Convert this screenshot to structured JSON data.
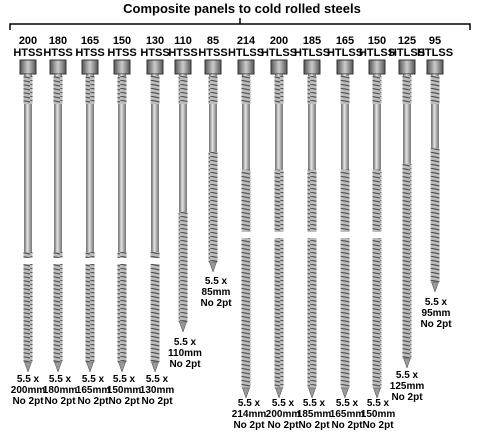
{
  "title": "Composite panels to cold rolled steels",
  "screws": [
    {
      "top": [
        "200",
        "HTSS"
      ],
      "bottom": [
        "5.5 x",
        "200mm",
        "No 2pt"
      ]
    },
    {
      "top": [
        "180",
        "HTSS"
      ],
      "bottom": [
        "5.5 x",
        "180mm",
        "No 2pt"
      ]
    },
    {
      "top": [
        "165",
        "HTSS"
      ],
      "bottom": [
        "5.5 x",
        "165mm",
        "No 2pt"
      ]
    },
    {
      "top": [
        "150",
        "HTSS"
      ],
      "bottom": [
        "5.5 x",
        "150mm",
        "No 2pt"
      ]
    },
    {
      "top": [
        "130",
        "HTSS"
      ],
      "bottom": [
        "5.5 x",
        "130mm",
        "No 2pt"
      ]
    },
    {
      "top": [
        "110",
        "HTSS"
      ],
      "bottom": [
        "5.5 x",
        "110mm",
        "No 2pt"
      ]
    },
    {
      "top": [
        "85",
        "HTSS"
      ],
      "bottom": [
        "5.5 x",
        "85mm",
        "No 2pt"
      ]
    },
    {
      "top": [
        "214",
        "HTLSS"
      ],
      "bottom": [
        "5.5 x",
        "214mm",
        "No 2pt"
      ]
    },
    {
      "top": [
        "200",
        "HTLSS"
      ],
      "bottom": [
        "5.5 x",
        "200mm",
        "No 2pt"
      ]
    },
    {
      "top": [
        "185",
        "HTLSS"
      ],
      "bottom": [
        "5.5 x",
        "185mm",
        "No 2pt"
      ]
    },
    {
      "top": [
        "165",
        "HTLSS"
      ],
      "bottom": [
        "5.5 x",
        "165mm",
        "No 2pt"
      ]
    },
    {
      "top": [
        "150",
        "HTLSS"
      ],
      "bottom": [
        "5.5 x",
        "150mm",
        "No 2pt"
      ]
    },
    {
      "top": [
        "125",
        "HTLSS"
      ],
      "bottom": [
        "5.5 x",
        "125mm",
        "No 2pt"
      ]
    },
    {
      "top": [
        "95",
        "HTLSS"
      ],
      "bottom": [
        "5.5 x",
        "95mm",
        "No 2pt"
      ]
    }
  ]
}
